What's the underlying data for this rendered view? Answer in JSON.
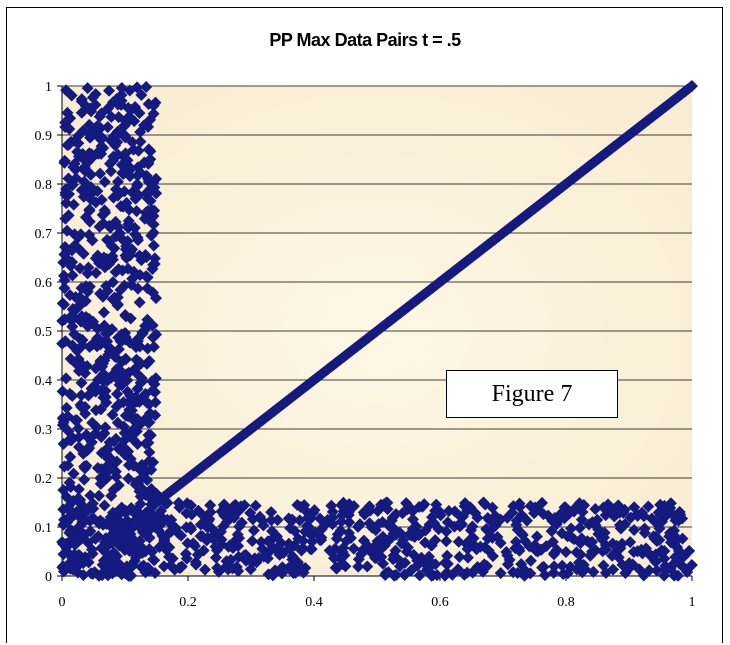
{
  "chart_data": {
    "type": "scatter",
    "title": "PP Max Data Pairs t = .5",
    "xlabel": "",
    "ylabel": "",
    "xlim": [
      0,
      1
    ],
    "ylim": [
      0,
      1
    ],
    "x_ticks": [
      "0",
      "0.2",
      "0.4",
      "0.6",
      "0.8",
      "1"
    ],
    "y_ticks": [
      "0",
      "0.1",
      "0.2",
      "0.3",
      "0.4",
      "0.5",
      "0.6",
      "0.7",
      "0.8",
      "0.9",
      "1"
    ],
    "grid": "horizontal",
    "marker": "diamond",
    "colors": {
      "marker": "#141a80",
      "plot_background": "#fbf3dc",
      "grid": "#000000"
    },
    "annotation": "Figure 7",
    "series": [
      {
        "description_of_regions": "diagonal band y=x from (0.15,0.15) to (1,1); vertical band x in [0,0.15], y in [0,1]; horizontal band y in [0,0.15], x in [0,1]",
        "clusters": [
          {
            "region": "diagonal",
            "x_range": [
              0.15,
              1.0
            ],
            "y_equals_x": true
          },
          {
            "region": "vertical",
            "x_range": [
              0.0,
              0.15
            ],
            "y_range": [
              0.0,
              1.0
            ]
          },
          {
            "region": "horizontal",
            "x_range": [
              0.0,
              1.0
            ],
            "y_range": [
              0.0,
              0.15
            ]
          }
        ]
      }
    ]
  }
}
